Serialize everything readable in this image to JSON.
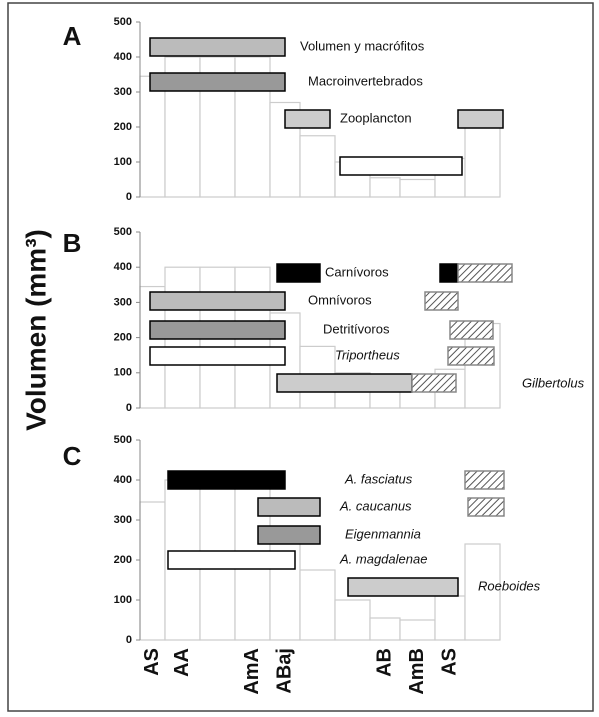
{
  "chart_data": [
    {
      "type": "bar",
      "panel": "A",
      "values": [
        345,
        400,
        400,
        400,
        270,
        175,
        100,
        55,
        50,
        110,
        240
      ],
      "color": "#ffffff",
      "edgecolor": "#cccccc",
      "ylim": [
        0,
        500
      ],
      "yticks": [
        0,
        100,
        200,
        300,
        400,
        500
      ],
      "ranges": [
        {
          "name": "Volumen y macrófitos",
          "fills": [
            "#bbbbbb"
          ]
        },
        {
          "name": "Macroinvertebrados",
          "fills": [
            "#999999"
          ]
        },
        {
          "name": "Zooplancton",
          "fills": [
            "#cccccc",
            "#cccccc"
          ]
        },
        {
          "fills": [
            "#ffffff"
          ]
        }
      ]
    },
    {
      "type": "bar",
      "panel": "B",
      "y_label": "Volumen (mm³)",
      "values": [
        345,
        400,
        400,
        400,
        270,
        175,
        100,
        55,
        50,
        110,
        240
      ],
      "color": "#ffffff",
      "edgecolor": "#cccccc",
      "ylim": [
        0,
        500
      ],
      "yticks": [
        0,
        100,
        200,
        300,
        400,
        500
      ],
      "ranges": [
        {
          "name": "Carnívoros",
          "fills": [
            "#000000",
            "#000000",
            "hatch"
          ]
        },
        {
          "name": "Omnívoros",
          "fills": [
            "#bbbbbb",
            "hatch"
          ]
        },
        {
          "name": "Detritívoros",
          "fills": [
            "#999999",
            "hatch"
          ]
        },
        {
          "name": "Triportheus",
          "italic": true,
          "fills": [
            "#ffffff",
            "hatch"
          ]
        },
        {
          "name": "Gilbertolus",
          "italic": true,
          "fills": [
            "#cccccc",
            "hatch"
          ]
        }
      ]
    },
    {
      "type": "bar",
      "panel": "C",
      "categories": [
        "AS",
        "AA",
        null,
        "AmA",
        "ABaj",
        null,
        null,
        "AB",
        "AmB",
        "AS",
        null
      ],
      "values": [
        345,
        400,
        400,
        400,
        270,
        175,
        100,
        55,
        50,
        110,
        240
      ],
      "color": "#ffffff",
      "edgecolor": "#cccccc",
      "ylim": [
        0,
        500
      ],
      "yticks": [
        0,
        100,
        200,
        300,
        400,
        500
      ],
      "ranges": [
        {
          "name": "A. fasciatus",
          "italic": true,
          "fills": [
            "#000000",
            "hatch"
          ]
        },
        {
          "name": "A. caucanus",
          "italic": true,
          "fills": [
            "#bbbbbb",
            "hatch"
          ]
        },
        {
          "name": "Eigenmannia",
          "italic": true,
          "fills": [
            "#999999"
          ]
        },
        {
          "name": "A. magdalenae",
          "italic": true,
          "fills": [
            "#ffffff"
          ]
        },
        {
          "name": "Roeboides",
          "italic": true,
          "fills": [
            "#cccccc"
          ]
        }
      ]
    }
  ]
}
